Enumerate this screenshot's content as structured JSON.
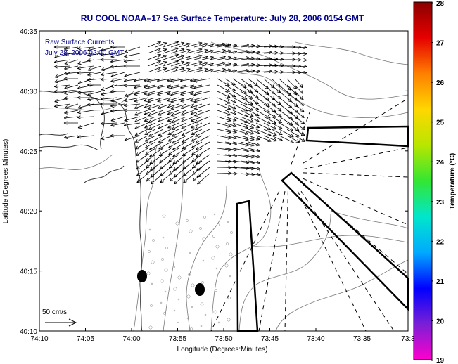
{
  "title": "RU COOL  NOAA–17  Sea Surface Temperature:  July 28, 2006 0154 GMT",
  "legend": {
    "line1": "Raw Surface Currents",
    "line2": "July 28, 2006 02:00 GMT"
  },
  "scale_label": "50 cm/s",
  "colorbar": {
    "label": "Temperature (°C)",
    "ticks": [
      "28",
      "27",
      "26",
      "25",
      "24",
      "23",
      "22",
      "21",
      "20",
      "19"
    ],
    "colors": [
      "#8b0000",
      "#e60000",
      "#ff7f00",
      "#ffd700",
      "#b8e600",
      "#33e633",
      "#00e6cc",
      "#00aaff",
      "#0000ff",
      "#7a1fd6",
      "#ff00cc"
    ]
  },
  "chart_data": {
    "type": "map",
    "xlabel": "Longitude (Degrees:Minutes)",
    "ylabel": "Latitude (Degrees:Minutes)",
    "x_ticks": [
      "74:10",
      "74:05",
      "74:00",
      "73:55",
      "73:50",
      "73:45",
      "73:40",
      "73:35",
      "73:3"
    ],
    "y_ticks": [
      "40:35",
      "40:30",
      "40:25",
      "40:20",
      "40:15",
      "40:10"
    ],
    "xlim": [
      "74:10",
      "73:30"
    ],
    "ylim": [
      "40:10",
      "40:35"
    ]
  }
}
